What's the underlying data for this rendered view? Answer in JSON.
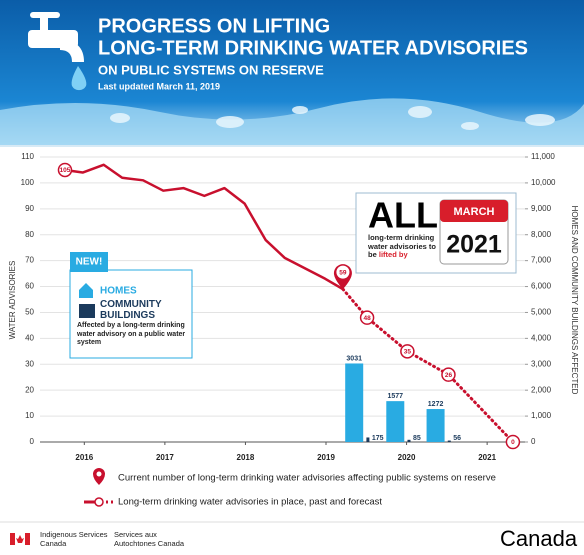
{
  "header": {
    "title": [
      "PROGRESS ON LIFTING",
      "LONG-TERM DRINKING WATER ADVISORIES"
    ],
    "subtitle": "ON PUBLIC SYSTEMS ON RESERVE",
    "updated": "Last updated March 11, 2019"
  },
  "chart_data": {
    "type": "line",
    "y_label": "WATER ADVISORIES",
    "y2_label": "HOMES AND COMMUNITY BUILDINGS AFFECTED",
    "xlim": [
      2015.45,
      2021.47
    ],
    "xticks": [
      2016,
      2017,
      2018,
      2019,
      2020,
      2021
    ],
    "ylim": [
      0,
      110
    ],
    "yticks": [
      0,
      10,
      20,
      30,
      40,
      50,
      60,
      70,
      80,
      90,
      100,
      110
    ],
    "y2lim": [
      0,
      11000
    ],
    "y2ticks": [
      0,
      {
        "value": 1000,
        "label": "1,000"
      },
      {
        "value": 2000,
        "label": "2,000"
      },
      {
        "value": 3000,
        "label": "3,000"
      },
      {
        "value": 4000,
        "label": "4,000"
      },
      {
        "value": 5000,
        "label": "5,000"
      },
      {
        "value": 6000,
        "label": "6,000"
      },
      {
        "value": 7000,
        "label": "7,000"
      },
      {
        "value": 8000,
        "label": "8,000"
      },
      {
        "value": 9000,
        "label": "9,000"
      },
      {
        "value": 10000,
        "label": "10,000"
      },
      {
        "value": 11000,
        "label": "11,000"
      }
    ],
    "grid": true,
    "series": [
      {
        "type": "line",
        "name": "Long-term drinking water advisories in place, past and forecast",
        "color": "#c8102e",
        "x": [
          2015.76,
          2015.98,
          2016.24,
          2016.47,
          2016.73,
          2016.98,
          2017.23,
          2017.49,
          2017.74,
          2017.99,
          2018.25,
          2018.49,
          2018.74,
          2018.99,
          2019.21,
          2019.51,
          2020.01,
          2020.52,
          2021.32
        ],
        "values": [
          105,
          104,
          107,
          102,
          101,
          97,
          98,
          95,
          98,
          92,
          78,
          71,
          67,
          63,
          59,
          48,
          35,
          26,
          0
        ],
        "labeled_points": [
          0,
          14,
          15,
          16,
          17,
          18
        ],
        "current_point": 14,
        "current_label": "Current number of long-term drinking water advisories affecting public systems on reserve"
      },
      {
        "type": "bar",
        "name": "HOMES",
        "color": "#29abe2",
        "axis": "y2",
        "x": [
          2019.35,
          2019.86,
          2020.36
        ],
        "values": [
          3031,
          1577,
          1272
        ]
      },
      {
        "type": "bar",
        "name": "COMMUNITY BUILDINGS",
        "color": "#1b3a5c",
        "axis": "y2",
        "x": [
          2019.52,
          2020.03,
          2020.53
        ],
        "values": [
          175,
          85,
          56
        ]
      }
    ]
  },
  "new_box": {
    "badge": "NEW!",
    "note": "Affected by a long-term drinking water advisory on a public water system"
  },
  "callout": {
    "big": "ALL",
    "text": "long-term drinking water advisories to be",
    "highlight": "lifted by",
    "month": "MARCH",
    "year": "2021"
  },
  "footer": {
    "dept_en": "Indigenous Services Canada",
    "dept_fr": "Services aux Autochtones Canada",
    "wordmark": "Canada"
  }
}
